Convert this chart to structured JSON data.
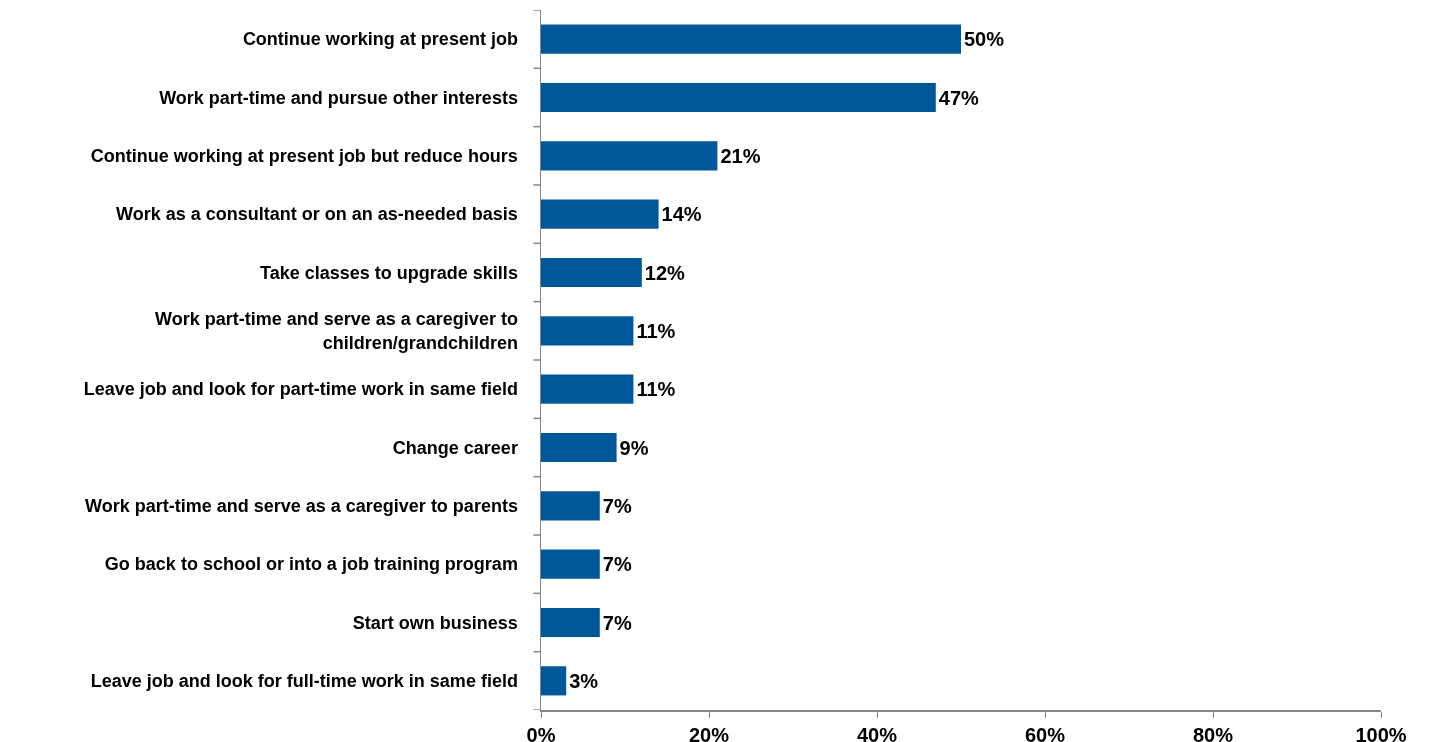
{
  "chart_data": {
    "type": "bar",
    "orientation": "horizontal",
    "categories": [
      "Continue working at present job",
      "Work part-time and pursue other interests",
      "Continue working at present job but reduce hours",
      "Work as a consultant or on an as-needed basis",
      "Take classes to upgrade skills",
      "Work part-time and serve as a caregiver to children/grandchildren",
      "Leave job and look for part-time work in same field",
      "Change career",
      "Work part-time and serve as a caregiver to parents",
      "Go back to school or into a job training program",
      "Start own business",
      "Leave job and look for full-time work in same field"
    ],
    "values": [
      50,
      47,
      21,
      14,
      12,
      11,
      11,
      9,
      7,
      7,
      7,
      3
    ],
    "value_labels": [
      "50%",
      "47%",
      "21%",
      "14%",
      "12%",
      "11%",
      "11%",
      "9%",
      "7%",
      "7%",
      "7%",
      "3%"
    ],
    "color": "#00589a",
    "xlim": [
      0,
      100
    ],
    "xticks": [
      {
        "value": 0,
        "label": "0%"
      },
      {
        "value": 20,
        "label": "20%"
      },
      {
        "value": 40,
        "label": "40%"
      },
      {
        "value": 60,
        "label": "60%"
      },
      {
        "value": 80,
        "label": "80%"
      },
      {
        "value": 100,
        "label": "100%"
      }
    ],
    "grid": false
  }
}
